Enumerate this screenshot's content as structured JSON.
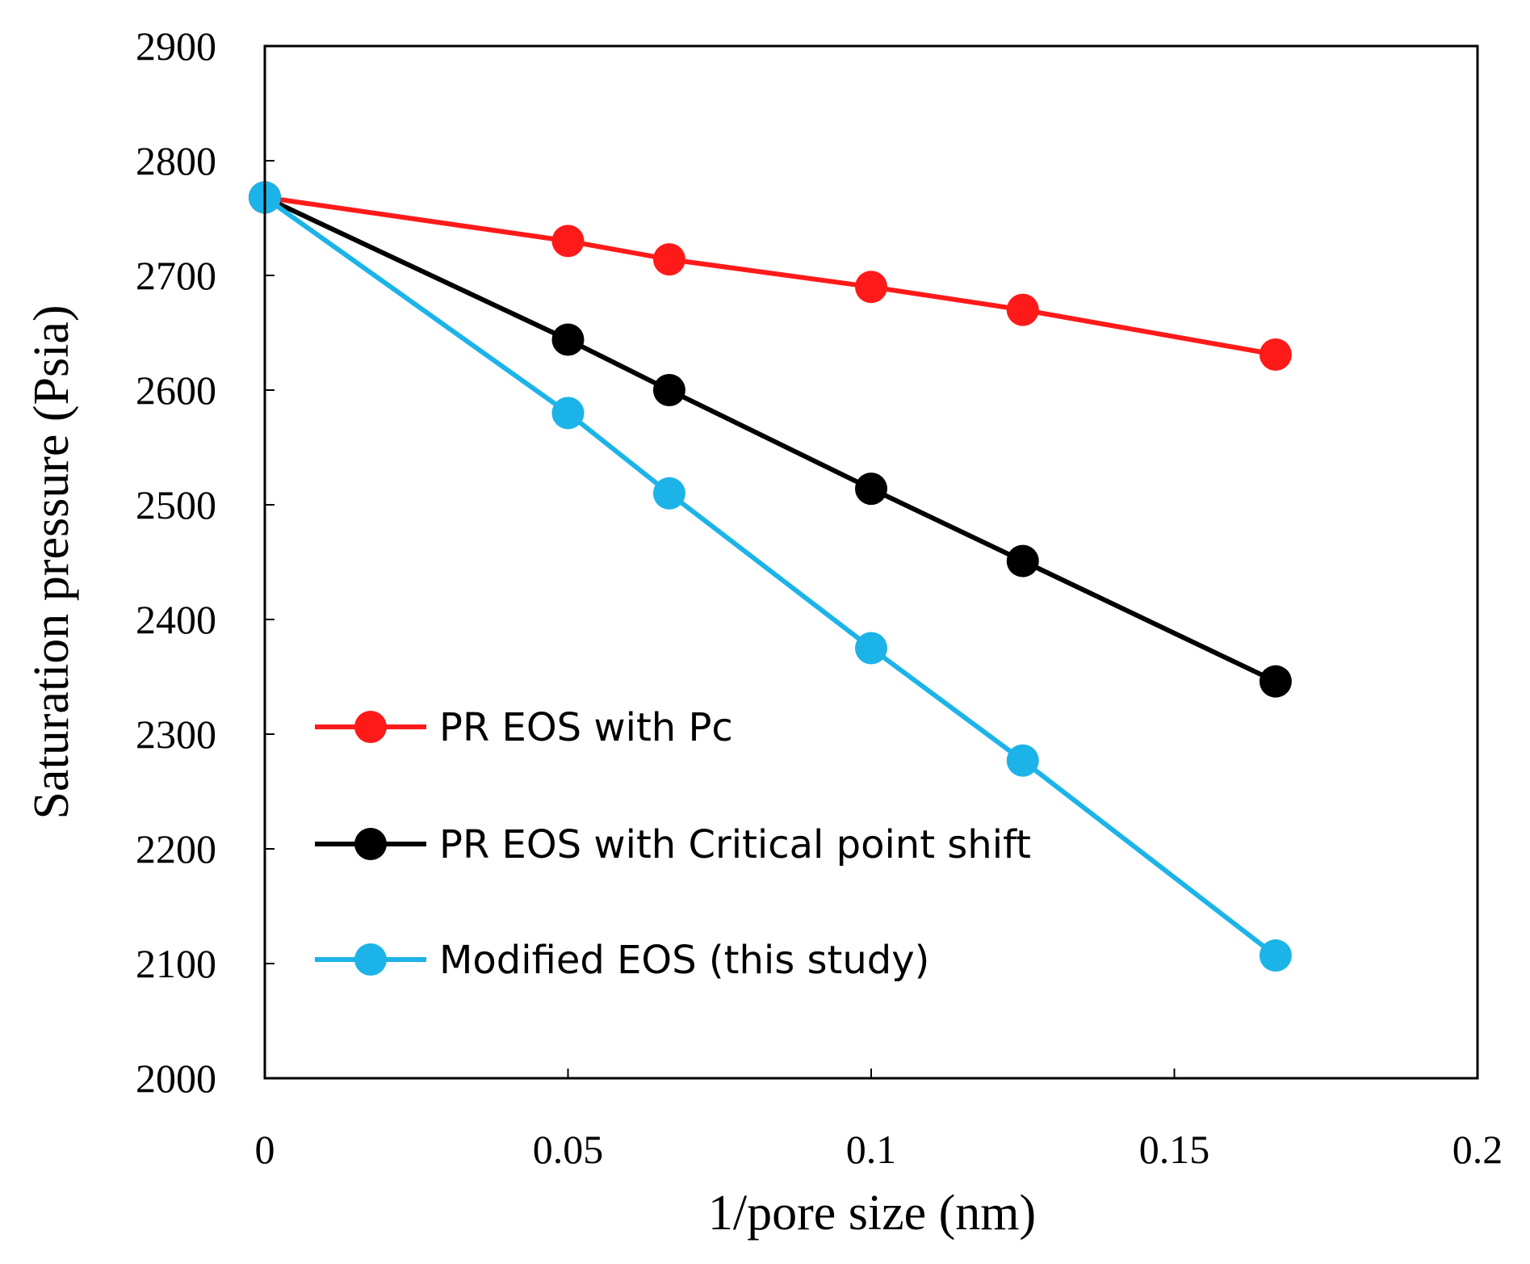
{
  "chart_data": {
    "type": "line",
    "xlabel": "1/pore size (nm)",
    "ylabel": "Saturation pressure (Psia)",
    "xlim": [
      0,
      0.2
    ],
    "ylim": [
      2000,
      2900
    ],
    "xticks": [
      0,
      0.05,
      0.1,
      0.15,
      0.2
    ],
    "xtick_labels": [
      "0",
      "0.05",
      "0.1",
      "0.15",
      "0.2"
    ],
    "yticks": [
      2000,
      2100,
      2200,
      2300,
      2400,
      2500,
      2600,
      2700,
      2800,
      2900
    ],
    "ytick_labels": [
      "2000",
      "2100",
      "2200",
      "2300",
      "2400",
      "2500",
      "2600",
      "2700",
      "2800",
      "2900"
    ],
    "grid": false,
    "legend_position": "left-bottom inside",
    "x": [
      0,
      0.05,
      0.0667,
      0.1,
      0.125,
      0.1667
    ],
    "series": [
      {
        "name": "PR EOS with Pc",
        "color": "#ff1a1a",
        "values": [
          2768,
          2730,
          2714,
          2690,
          2670,
          2631
        ]
      },
      {
        "name": "PR EOS with Critical point shift",
        "color": "#000000",
        "values": [
          2768,
          2644,
          2600,
          2514,
          2451,
          2346
        ]
      },
      {
        "name": "Modified EOS (this study)",
        "color": "#1cb4e8",
        "values": [
          2768,
          2580,
          2510,
          2375,
          2277,
          2107
        ]
      }
    ]
  }
}
